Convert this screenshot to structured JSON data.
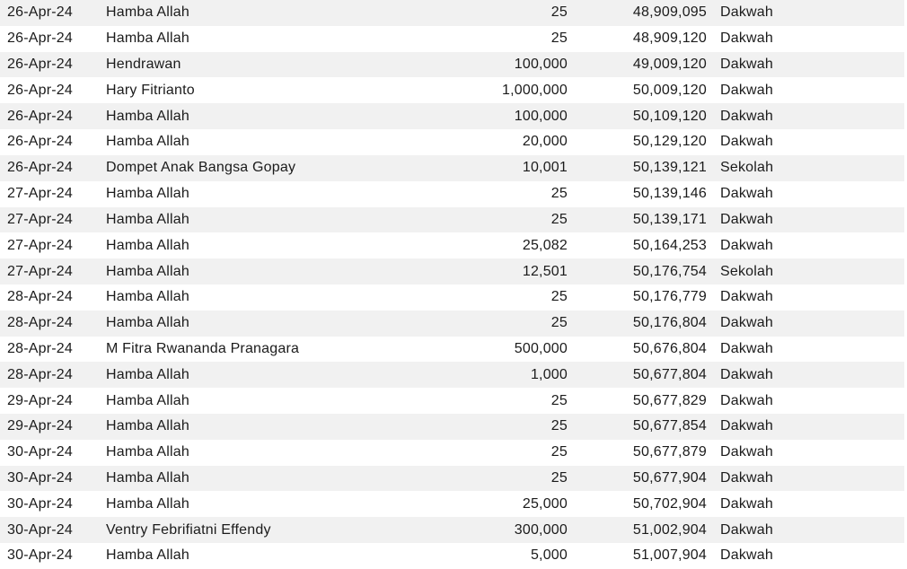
{
  "colors": {
    "row_stripe": "#f1f1f1",
    "row_plain": "#ffffff",
    "text": "#1b1b1b"
  },
  "table": {
    "rows": [
      {
        "date": "26-Apr-24",
        "donor": "Hamba Allah",
        "amount": "25",
        "balance": "48,909,095",
        "category": "Dakwah"
      },
      {
        "date": "26-Apr-24",
        "donor": "Hamba Allah",
        "amount": "25",
        "balance": "48,909,120",
        "category": "Dakwah"
      },
      {
        "date": "26-Apr-24",
        "donor": "Hendrawan",
        "amount": "100,000",
        "balance": "49,009,120",
        "category": "Dakwah"
      },
      {
        "date": "26-Apr-24",
        "donor": "Hary Fitrianto",
        "amount": "1,000,000",
        "balance": "50,009,120",
        "category": "Dakwah"
      },
      {
        "date": "26-Apr-24",
        "donor": "Hamba Allah",
        "amount": "100,000",
        "balance": "50,109,120",
        "category": "Dakwah"
      },
      {
        "date": "26-Apr-24",
        "donor": "Hamba Allah",
        "amount": "20,000",
        "balance": "50,129,120",
        "category": "Dakwah"
      },
      {
        "date": "26-Apr-24",
        "donor": "Dompet Anak Bangsa Gopay",
        "amount": "10,001",
        "balance": "50,139,121",
        "category": "Sekolah"
      },
      {
        "date": "27-Apr-24",
        "donor": "Hamba Allah",
        "amount": "25",
        "balance": "50,139,146",
        "category": "Dakwah"
      },
      {
        "date": "27-Apr-24",
        "donor": "Hamba Allah",
        "amount": "25",
        "balance": "50,139,171",
        "category": "Dakwah"
      },
      {
        "date": "27-Apr-24",
        "donor": "Hamba Allah",
        "amount": "25,082",
        "balance": "50,164,253",
        "category": "Dakwah"
      },
      {
        "date": "27-Apr-24",
        "donor": "Hamba Allah",
        "amount": "12,501",
        "balance": "50,176,754",
        "category": "Sekolah"
      },
      {
        "date": "28-Apr-24",
        "donor": "Hamba Allah",
        "amount": "25",
        "balance": "50,176,779",
        "category": "Dakwah"
      },
      {
        "date": "28-Apr-24",
        "donor": "Hamba Allah",
        "amount": "25",
        "balance": "50,176,804",
        "category": "Dakwah"
      },
      {
        "date": "28-Apr-24",
        "donor": "M Fitra Rwananda Pranagara",
        "amount": "500,000",
        "balance": "50,676,804",
        "category": "Dakwah"
      },
      {
        "date": "28-Apr-24",
        "donor": "Hamba Allah",
        "amount": "1,000",
        "balance": "50,677,804",
        "category": "Dakwah"
      },
      {
        "date": "29-Apr-24",
        "donor": "Hamba Allah",
        "amount": "25",
        "balance": "50,677,829",
        "category": "Dakwah"
      },
      {
        "date": "29-Apr-24",
        "donor": "Hamba Allah",
        "amount": "25",
        "balance": "50,677,854",
        "category": "Dakwah"
      },
      {
        "date": "30-Apr-24",
        "donor": "Hamba Allah",
        "amount": "25",
        "balance": "50,677,879",
        "category": "Dakwah"
      },
      {
        "date": "30-Apr-24",
        "donor": "Hamba Allah",
        "amount": "25",
        "balance": "50,677,904",
        "category": "Dakwah"
      },
      {
        "date": "30-Apr-24",
        "donor": "Hamba Allah",
        "amount": "25,000",
        "balance": "50,702,904",
        "category": "Dakwah"
      },
      {
        "date": "30-Apr-24",
        "donor": "Ventry Febrifiatni Effendy",
        "amount": "300,000",
        "balance": "51,002,904",
        "category": "Dakwah"
      },
      {
        "date": "30-Apr-24",
        "donor": "Hamba Allah",
        "amount": "5,000",
        "balance": "51,007,904",
        "category": "Dakwah"
      }
    ]
  }
}
